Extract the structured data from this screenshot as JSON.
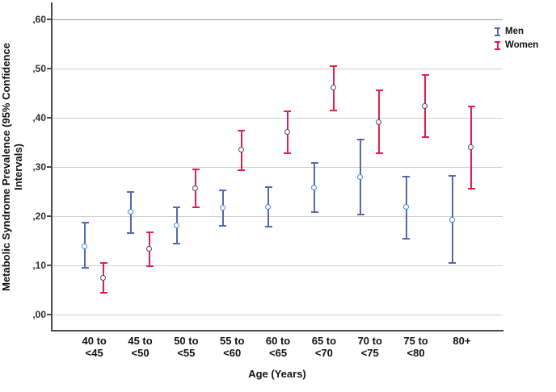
{
  "chart_data": {
    "type": "errorbar-scatter",
    "title": "",
    "xlabel": "Age (Years)",
    "ylabel": "Metabolic Syndrome Prevalence (95% Confidence Intervals)",
    "categories": [
      "40 to\n<45",
      "45 to\n<50",
      "50 to\n<55",
      "55 to\n<60",
      "60 to\n<65",
      "65 to\n<70",
      "70 to\n<75",
      "75 to\n<80",
      "80+"
    ],
    "y_ticks": [
      ",00",
      ",10",
      ",20",
      ",30",
      ",40",
      ",50",
      ",60"
    ],
    "ylim": [
      0.0,
      0.6
    ],
    "grid": "horizontal",
    "legend_position": "top-right",
    "series": [
      {
        "name": "Men",
        "marker": "open-circle",
        "marker_color": "#3d8bdd",
        "bar_color": "#5468ae",
        "values": [
          0.138,
          0.207,
          0.18,
          0.216,
          0.217,
          0.257,
          0.278,
          0.218,
          0.192
        ],
        "lower": [
          0.094,
          0.165,
          0.144,
          0.18,
          0.178,
          0.207,
          0.202,
          0.154,
          0.104
        ],
        "upper": [
          0.186,
          0.249,
          0.218,
          0.252,
          0.258,
          0.308,
          0.355,
          0.28,
          0.282
        ]
      },
      {
        "name": "Women",
        "marker": "open-circle",
        "marker_color": "#4d4d4d",
        "bar_color": "#e01e50",
        "values": [
          0.073,
          0.132,
          0.256,
          0.334,
          0.37,
          0.46,
          0.39,
          0.422,
          0.339
        ],
        "lower": [
          0.043,
          0.098,
          0.218,
          0.293,
          0.327,
          0.415,
          0.327,
          0.36,
          0.255
        ],
        "upper": [
          0.104,
          0.166,
          0.295,
          0.374,
          0.412,
          0.505,
          0.456,
          0.486,
          0.423
        ]
      }
    ]
  }
}
